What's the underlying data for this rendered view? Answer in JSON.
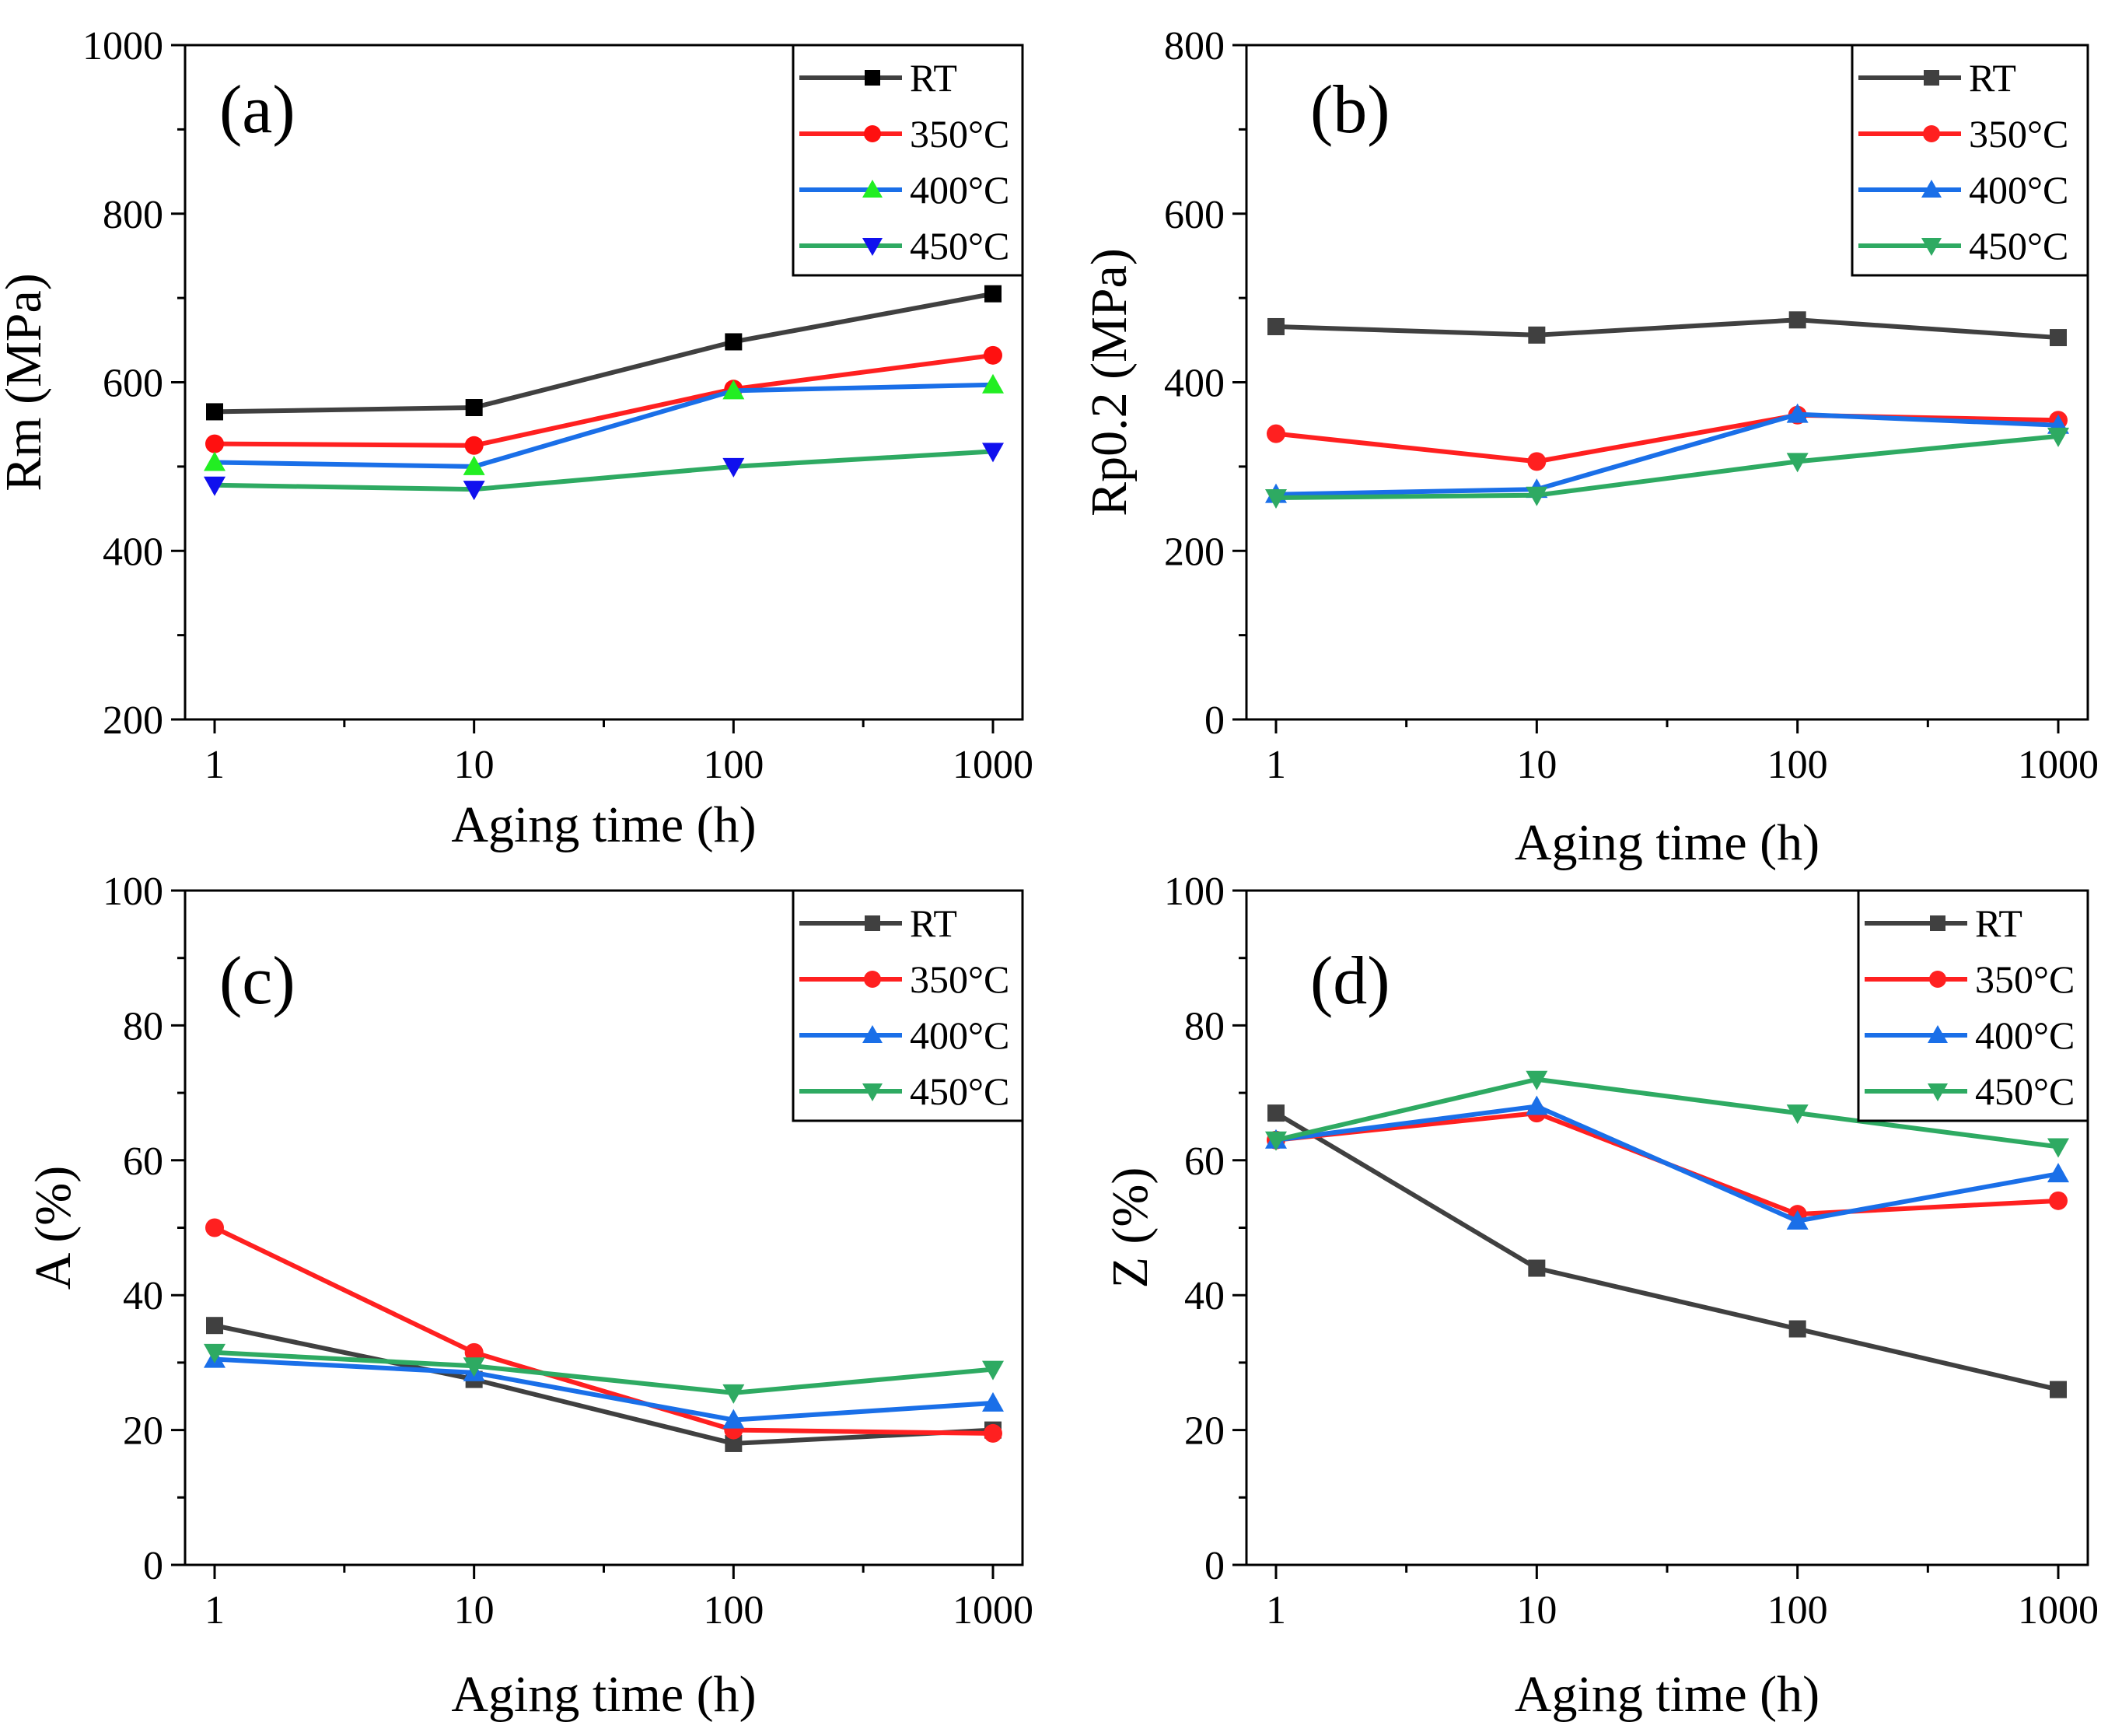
{
  "colors": {
    "RT": "#404040",
    "350": "#ff2020",
    "400": "#1a6fe8",
    "450": "#2eaa62",
    "frame": "#000000"
  },
  "chart_data": [
    {
      "panel": "(a)",
      "type": "line",
      "xscale": "log",
      "xlabel": "Aging time (h)",
      "ylabel": "Rm (MPa)",
      "xlim": [
        1,
        1000
      ],
      "ylim": [
        200,
        1000
      ],
      "xticks": [
        "1",
        "10",
        "100",
        "1000"
      ],
      "yticks": [
        "200",
        "400",
        "600",
        "800",
        "1000"
      ],
      "x": [
        1,
        10,
        100,
        1000
      ],
      "legend_position": "top-right",
      "series": [
        {
          "name": "RT",
          "color": "#404040",
          "line_color": "#404040",
          "marker": "square",
          "marker_color": "#000000",
          "values": [
            565,
            570,
            648,
            705
          ]
        },
        {
          "name": "350°C",
          "color": "#ff2020",
          "line_color": "#ff2020",
          "marker": "circle",
          "marker_color": "#ff1010",
          "values": [
            527,
            525,
            592,
            632
          ]
        },
        {
          "name": "400°C",
          "color": "#1a6fe8",
          "line_color": "#1a6fe8",
          "marker": "triangle-up",
          "marker_color": "#22ee22",
          "values": [
            505,
            500,
            590,
            597
          ]
        },
        {
          "name": "450°C",
          "color": "#2eaa62",
          "line_color": "#2eaa62",
          "marker": "triangle-down",
          "marker_color": "#1010ee",
          "values": [
            478,
            473,
            500,
            518
          ]
        }
      ]
    },
    {
      "panel": "(b)",
      "type": "line",
      "xscale": "log",
      "xlabel": "Aging time (h)",
      "ylabel": "Rp0.2 (MPa)",
      "xlim": [
        1,
        1000
      ],
      "ylim": [
        0,
        800
      ],
      "xticks": [
        "1",
        "10",
        "100",
        "1000"
      ],
      "yticks": [
        "0",
        "200",
        "400",
        "600",
        "800"
      ],
      "x": [
        1,
        10,
        100,
        1000
      ],
      "legend_position": "top-right",
      "series": [
        {
          "name": "RT",
          "color": "#404040",
          "line_color": "#404040",
          "marker": "square",
          "marker_color": "#404040",
          "values": [
            466,
            456,
            474,
            453
          ]
        },
        {
          "name": "350°C",
          "color": "#ff2020",
          "line_color": "#ff2020",
          "marker": "circle",
          "marker_color": "#ff2020",
          "values": [
            339,
            306,
            361,
            355
          ]
        },
        {
          "name": "400°C",
          "color": "#1a6fe8",
          "line_color": "#1a6fe8",
          "marker": "triangle-up",
          "marker_color": "#1a6fe8",
          "values": [
            267,
            273,
            362,
            349
          ]
        },
        {
          "name": "450°C",
          "color": "#2eaa62",
          "line_color": "#2eaa62",
          "marker": "triangle-down",
          "marker_color": "#2eaa62",
          "values": [
            263,
            266,
            306,
            336
          ]
        }
      ]
    },
    {
      "panel": "(c)",
      "type": "line",
      "xscale": "log",
      "xlabel": "Aging time (h)",
      "ylabel": "A (%)",
      "xlim": [
        1,
        1000
      ],
      "ylim": [
        0,
        100
      ],
      "xticks": [
        "1",
        "10",
        "100",
        "1000"
      ],
      "yticks": [
        "0",
        "20",
        "40",
        "60",
        "80",
        "100"
      ],
      "x": [
        1,
        10,
        100,
        1000
      ],
      "legend_position": "top-right",
      "series": [
        {
          "name": "RT",
          "color": "#404040",
          "line_color": "#404040",
          "marker": "square",
          "marker_color": "#404040",
          "values": [
            35.5,
            27.5,
            18,
            20
          ]
        },
        {
          "name": "350°C",
          "color": "#ff2020",
          "line_color": "#ff2020",
          "marker": "circle",
          "marker_color": "#ff2020",
          "values": [
            50,
            31.5,
            20,
            19.5
          ]
        },
        {
          "name": "400°C",
          "color": "#1a6fe8",
          "line_color": "#1a6fe8",
          "marker": "triangle-up",
          "marker_color": "#1a6fe8",
          "values": [
            30.5,
            28.5,
            21.5,
            24
          ]
        },
        {
          "name": "450°C",
          "color": "#2eaa62",
          "line_color": "#2eaa62",
          "marker": "triangle-down",
          "marker_color": "#2eaa62",
          "values": [
            31.5,
            29.5,
            25.5,
            29
          ]
        }
      ]
    },
    {
      "panel": "(d)",
      "type": "line",
      "xscale": "log",
      "xlabel": "Aging time (h)",
      "ylabel": "Z (%)",
      "xlim": [
        1,
        1000
      ],
      "ylim": [
        0,
        100
      ],
      "xticks": [
        "1",
        "10",
        "100",
        "1000"
      ],
      "yticks": [
        "0",
        "20",
        "40",
        "60",
        "80",
        "100"
      ],
      "x": [
        1,
        10,
        100,
        1000
      ],
      "legend_position": "top-right",
      "series": [
        {
          "name": "RT",
          "color": "#404040",
          "line_color": "#404040",
          "marker": "square",
          "marker_color": "#404040",
          "values": [
            67,
            44,
            35,
            26
          ]
        },
        {
          "name": "350°C",
          "color": "#ff2020",
          "line_color": "#ff2020",
          "marker": "circle",
          "marker_color": "#ff2020",
          "values": [
            63,
            67,
            52,
            54
          ]
        },
        {
          "name": "400°C",
          "color": "#1a6fe8",
          "line_color": "#1a6fe8",
          "marker": "triangle-up",
          "marker_color": "#1a6fe8",
          "values": [
            63,
            68,
            51,
            58
          ]
        },
        {
          "name": "450°C",
          "color": "#2eaa62",
          "line_color": "#2eaa62",
          "marker": "triangle-down",
          "marker_color": "#2eaa62",
          "values": [
            63,
            72,
            67,
            62
          ]
        }
      ]
    }
  ]
}
